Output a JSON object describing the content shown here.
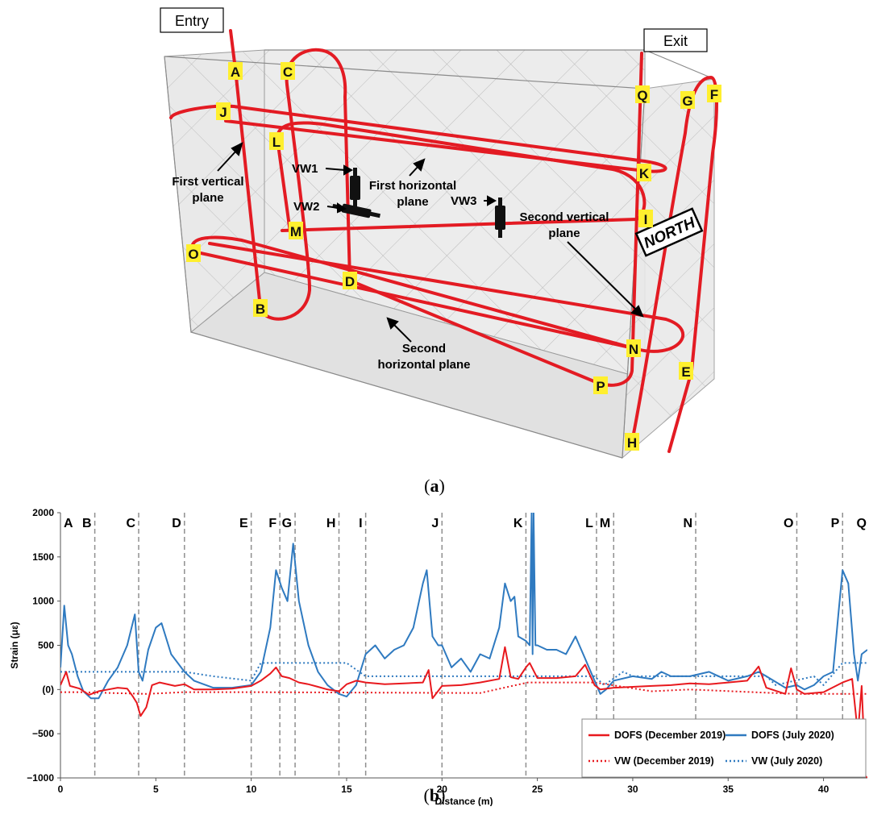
{
  "figure_a": {
    "entry_label": "Entry",
    "exit_label": "Exit",
    "north_label": "NORTH",
    "point_labels": [
      "A",
      "B",
      "C",
      "D",
      "E",
      "F",
      "G",
      "H",
      "I",
      "J",
      "K",
      "L",
      "M",
      "N",
      "O",
      "P",
      "Q"
    ],
    "sensors": [
      "VW1",
      "VW2",
      "VW3"
    ],
    "plane_labels": {
      "first_vertical": [
        "First vertical",
        "plane"
      ],
      "first_horizontal": [
        "First horizontal",
        "plane"
      ],
      "second_vertical": [
        "Second vertical",
        "plane"
      ],
      "second_horizontal": [
        "Second",
        "horizontal plane"
      ]
    },
    "caption": "a"
  },
  "figure_b": {
    "caption": "b"
  },
  "chart_data": {
    "type": "line",
    "xlabel": "Distance (m)",
    "ylabel": "Strain (με)",
    "xlim": [
      0,
      42.3
    ],
    "ylim": [
      -1000,
      2000
    ],
    "x_ticks": [
      0,
      5,
      10,
      15,
      20,
      25,
      30,
      35,
      40
    ],
    "y_ticks": [
      2000,
      1500,
      1000,
      500,
      0,
      -500,
      -1000
    ],
    "y_tick_labels": [
      "2000",
      "1500",
      "1000",
      "500",
      "(0)",
      "−500",
      "−1000"
    ],
    "grid": false,
    "legend_position": "bottom-right",
    "section_markers": [
      {
        "label": "A",
        "x": 0
      },
      {
        "label": "B",
        "x": 1.8
      },
      {
        "label": "C",
        "x": 4.1
      },
      {
        "label": "D",
        "x": 6.5
      },
      {
        "label": "E",
        "x": 10.0
      },
      {
        "label": "F",
        "x": 11.5
      },
      {
        "label": "G",
        "x": 12.3
      },
      {
        "label": "H",
        "x": 14.6
      },
      {
        "label": "I",
        "x": 16.0
      },
      {
        "label": "J",
        "x": 20.0
      },
      {
        "label": "K",
        "x": 24.4
      },
      {
        "label": "L",
        "x": 28.1
      },
      {
        "label": "M",
        "x": 29.0
      },
      {
        "label": "N",
        "x": 33.3
      },
      {
        "label": "O",
        "x": 38.6
      },
      {
        "label": "P",
        "x": 41.0
      },
      {
        "label": "Q",
        "x": 42.3
      }
    ],
    "series": [
      {
        "name": "DOFS (December 2019)",
        "color": "#e8191e",
        "style": "solid",
        "x": [
          0,
          0.3,
          0.5,
          1.0,
          1.5,
          2.0,
          2.5,
          3.0,
          3.5,
          3.8,
          4.0,
          4.2,
          4.5,
          4.8,
          5.2,
          6.0,
          6.5,
          7.0,
          8.0,
          9.0,
          10.0,
          10.5,
          11.0,
          11.3,
          11.6,
          12.0,
          12.5,
          13.0,
          13.5,
          14.0,
          14.6,
          15.0,
          15.5,
          16.0,
          17.0,
          18.0,
          19.0,
          19.3,
          19.5,
          20.0,
          21.0,
          22.0,
          23.0,
          23.3,
          23.6,
          24.0,
          24.4,
          24.6,
          25.0,
          26.0,
          27.0,
          27.5,
          28.0,
          28.3,
          29.0,
          30.0,
          31.0,
          32.0,
          33.0,
          34.0,
          35.0,
          36.0,
          36.6,
          37.0,
          38.0,
          38.3,
          38.6,
          39.0,
          40.0,
          41.0,
          41.5,
          41.8,
          42.0,
          42.2,
          42.3
        ],
        "y": [
          50,
          200,
          40,
          10,
          -60,
          -20,
          0,
          20,
          10,
          -80,
          -150,
          -300,
          -200,
          50,
          80,
          40,
          60,
          0,
          0,
          10,
          40,
          100,
          180,
          250,
          150,
          130,
          80,
          60,
          30,
          0,
          -20,
          60,
          100,
          80,
          60,
          70,
          80,
          220,
          -100,
          40,
          50,
          80,
          120,
          480,
          140,
          120,
          250,
          300,
          130,
          130,
          150,
          280,
          50,
          0,
          20,
          30,
          40,
          50,
          70,
          60,
          80,
          100,
          260,
          20,
          -50,
          240,
          0,
          -50,
          -30,
          80,
          120,
          -500,
          40,
          -980,
          -1000
        ]
      },
      {
        "name": "DOFS (July 2020)",
        "color": "#2f7ac0",
        "style": "solid",
        "x": [
          0,
          0.2,
          0.4,
          0.6,
          0.9,
          1.2,
          1.6,
          2.0,
          2.5,
          3.0,
          3.5,
          3.9,
          4.1,
          4.3,
          4.6,
          5.0,
          5.3,
          5.8,
          6.5,
          7.0,
          8.0,
          9.0,
          10.0,
          10.5,
          11.0,
          11.3,
          11.6,
          11.9,
          12.2,
          12.5,
          13.0,
          13.5,
          14.0,
          14.6,
          15.0,
          15.5,
          16.0,
          16.5,
          17.0,
          17.5,
          18.0,
          18.5,
          19.0,
          19.2,
          19.5,
          19.8,
          20.0,
          20.5,
          21.0,
          21.5,
          22.0,
          22.5,
          23.0,
          23.3,
          23.6,
          23.8,
          24.0,
          24.4,
          24.6,
          24.7,
          24.75,
          24.8,
          24.9,
          25.0,
          25.5,
          26.0,
          26.5,
          27.0,
          27.5,
          28.0,
          28.3,
          28.6,
          29.0,
          30.0,
          31.0,
          31.5,
          32.0,
          33.0,
          34.0,
          35.0,
          36.0,
          36.6,
          37.0,
          38.0,
          38.6,
          39.0,
          39.5,
          40.0,
          40.5,
          40.8,
          41.0,
          41.3,
          41.6,
          41.8,
          42.0,
          42.3
        ],
        "y": [
          250,
          950,
          500,
          400,
          150,
          -20,
          -100,
          -100,
          100,
          250,
          500,
          850,
          200,
          100,
          450,
          700,
          750,
          400,
          200,
          100,
          20,
          20,
          50,
          200,
          700,
          1350,
          1150,
          1000,
          1650,
          1000,
          500,
          200,
          50,
          -50,
          -80,
          50,
          400,
          500,
          350,
          450,
          500,
          700,
          1200,
          1350,
          600,
          500,
          500,
          250,
          350,
          200,
          400,
          350,
          700,
          1200,
          1000,
          1050,
          600,
          550,
          500,
          2000,
          400,
          2000,
          500,
          500,
          450,
          450,
          400,
          600,
          350,
          100,
          -50,
          0,
          100,
          150,
          120,
          200,
          150,
          150,
          200,
          100,
          150,
          200,
          150,
          20,
          50,
          0,
          50,
          150,
          200,
          900,
          1350,
          1200,
          400,
          100,
          400,
          450
        ]
      },
      {
        "name": "VW (December 2019)",
        "color": "#e8191e",
        "style": "dotted",
        "x": [
          0,
          1.0,
          4.5,
          6.5,
          10.0,
          22.0,
          24.5,
          28.0,
          31.0,
          33.0,
          38.5,
          42.3
        ],
        "y": [
          -30,
          -30,
          -50,
          -30,
          -30,
          -40,
          80,
          80,
          -20,
          0,
          -50,
          -50
        ]
      },
      {
        "name": "VW (July 2020)",
        "color": "#2f7ac0",
        "style": "dotted",
        "x": [
          0,
          4.0,
          6.5,
          8.0,
          10.0,
          10.5,
          13.0,
          15.0,
          16.0,
          22.0,
          24.5,
          28.0,
          28.5,
          29.5,
          30.0,
          37.0,
          37.5,
          39.5,
          40.0,
          41.0,
          42.3
        ],
        "y": [
          200,
          200,
          200,
          150,
          100,
          300,
          300,
          300,
          150,
          150,
          150,
          150,
          50,
          200,
          150,
          150,
          50,
          150,
          50,
          300,
          300
        ]
      }
    ]
  }
}
